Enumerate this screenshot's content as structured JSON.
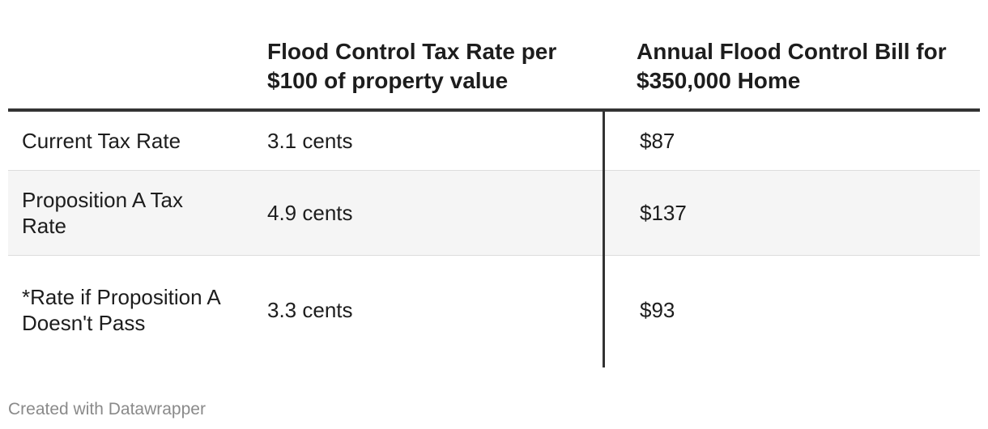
{
  "chart_data": {
    "type": "table",
    "columns": [
      "",
      "Flood Control Tax Rate per $100 of property value",
      "Annual Flood Control Bill for $350,000 Home"
    ],
    "rows": [
      {
        "label": "Current Tax Rate",
        "tax_rate": "3.1 cents",
        "annual_bill": "$87"
      },
      {
        "label": "Proposition A Tax Rate",
        "tax_rate": "4.9 cents",
        "annual_bill": "$137"
      },
      {
        "label": "*Rate if Proposition A Doesn't Pass",
        "tax_rate": "3.3 cents",
        "annual_bill": "$93"
      }
    ],
    "values": {
      "tax_rate_cents": [
        3.1,
        4.9,
        3.3
      ],
      "annual_bill_usd": [
        87,
        137,
        93
      ]
    }
  },
  "footer": {
    "credit": "Created with Datawrapper"
  },
  "colors": {
    "text": "#1d1d1d",
    "rule": "#333333",
    "stripe": "#f5f5f5",
    "footer": "#8a8a8a"
  }
}
